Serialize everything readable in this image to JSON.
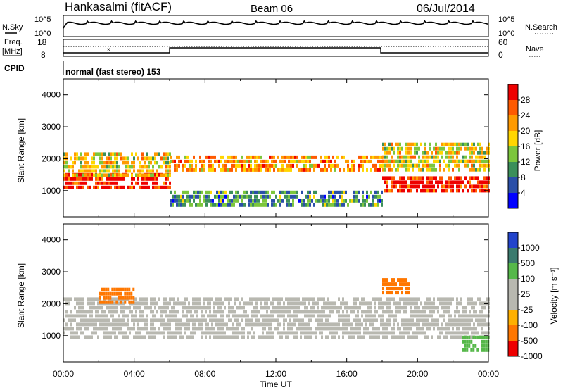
{
  "header": {
    "station": "Hankasalmi (fitACF)",
    "beam": "Beam 06",
    "date": "06/Jul/2014"
  },
  "noise_panel": {
    "left_label": "N.Sky",
    "left_ticks": [
      "10^5",
      "10^0"
    ],
    "right_label": "N.Search",
    "right_ticks": [
      "10^5",
      "10^0"
    ]
  },
  "freq_panel": {
    "left_label_1": "Freq.",
    "left_label_2": "[MHz]",
    "left_ticks": [
      "18",
      "8"
    ],
    "right_label": "Nave",
    "right_ticks": [
      "60",
      "0"
    ]
  },
  "cpid": {
    "label": "CPID",
    "mode": "normal (fast stereo) 153"
  },
  "axes": {
    "ylabel": "Slant Range [km]",
    "y_ticks": [
      "4000",
      "3000",
      "2000",
      "1000"
    ],
    "xlabel": "Time UT",
    "x_ticks": [
      "00:00",
      "04:00",
      "08:00",
      "12:00",
      "16:00",
      "20:00",
      "00:00"
    ]
  },
  "colorbars": {
    "power": {
      "label": "Power [dB]",
      "ticks": [
        "28",
        "24",
        "20",
        "16",
        "12",
        "8",
        "4"
      ],
      "colors": [
        "#ee0000",
        "#ff5a00",
        "#ff9a00",
        "#ffd600",
        "#7cc63c",
        "#3b8f5a",
        "#2a4fa8",
        "#0000ff"
      ]
    },
    "velocity": {
      "label": "Velocity [m s⁻¹]",
      "ticks": [
        "1000",
        "500",
        "100",
        "25",
        "-25",
        "-100",
        "-500",
        "-1000"
      ],
      "colors": [
        "#2244cc",
        "#3a7a6e",
        "#56b84a",
        "#b8b8b0",
        "#b8b8b0",
        "#ffb000",
        "#ff7700",
        "#ee0000"
      ]
    }
  },
  "chart_data": {
    "type": "heatmap",
    "x_range": [
      "00:00",
      "24:00"
    ],
    "y_range_km": [
      180,
      4500
    ],
    "series": [
      {
        "name": "Power [dB]",
        "bands": [
          {
            "t0": 0,
            "t1": 6,
            "r0": 1050,
            "r1": 1550,
            "level": 28
          },
          {
            "t0": 0,
            "t1": 6,
            "r0": 1500,
            "r1": 2200,
            "level": 16
          },
          {
            "t0": 6,
            "t1": 18,
            "r0": 1600,
            "r1": 2100,
            "level": 20
          },
          {
            "t0": 6,
            "t1": 18,
            "r0": 500,
            "r1": 1000,
            "level": 8
          },
          {
            "t0": 18,
            "t1": 24,
            "r0": 1000,
            "r1": 1450,
            "level": 28
          },
          {
            "t0": 18,
            "t1": 24,
            "r0": 1700,
            "r1": 2500,
            "level": 16
          }
        ]
      },
      {
        "name": "Velocity [m s-1]",
        "bands": [
          {
            "t0": 0,
            "t1": 24,
            "r0": 900,
            "r1": 2200,
            "level": 0
          },
          {
            "t0": 2,
            "t1": 4,
            "r0": 2000,
            "r1": 2500,
            "level": -300
          },
          {
            "t0": 18,
            "t1": 19.5,
            "r0": 2300,
            "r1": 2800,
            "level": -300
          },
          {
            "t0": 22.5,
            "t1": 24,
            "r0": 500,
            "r1": 1000,
            "level": 200
          }
        ]
      }
    ]
  }
}
